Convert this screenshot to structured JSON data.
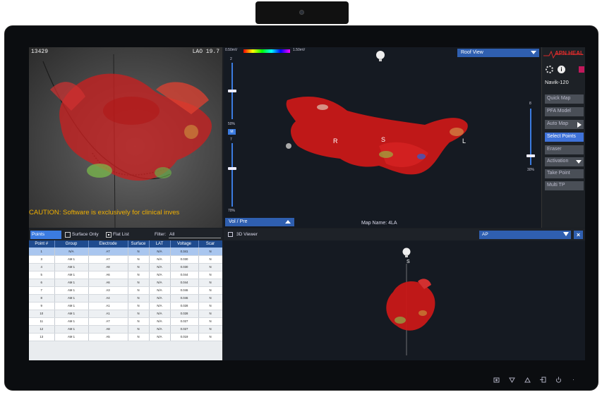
{
  "fluoro": {
    "id": "13429",
    "view": "LAO 19.7",
    "caution": "CAUTION: Software is exclusively for clinical inves"
  },
  "map": {
    "colorbar_min": "0.50mV",
    "colorbar_max": "1.50mV",
    "view_select": "Roof View",
    "map_name": "Map Name: 4LA",
    "vol_pre": "Vol / Pre",
    "orient_right": "R",
    "orient_super": "S",
    "orient_left": "L",
    "slider_labels": [
      "2",
      "50%",
      "M",
      "7",
      "70%"
    ],
    "right_slider_labels": [
      "8",
      "30%"
    ]
  },
  "side": {
    "brand": "APN HEAL",
    "device": "Navik-120",
    "buttons": [
      {
        "label": "Quick Map",
        "active": false
      },
      {
        "label": "PFA Model",
        "active": false
      },
      {
        "label": "Auto Map",
        "active": false
      },
      {
        "label": "Select Points",
        "active": true
      },
      {
        "label": "Eraser",
        "active": false
      },
      {
        "label": "Activation",
        "active": false
      },
      {
        "label": "Take Point",
        "active": false
      },
      {
        "label": "Multi TP",
        "active": false
      }
    ]
  },
  "points": {
    "tab": "Points",
    "surface_only": "Surface Only",
    "flat_list": "Flat List",
    "filter_label": "Filter:",
    "filter_value": "All",
    "columns": [
      "Point #",
      "Group",
      "Electrode",
      "Surface",
      "LAT",
      "Voltage",
      "Scar"
    ],
    "rows": [
      [
        "1",
        "N/A",
        "A7",
        "N",
        "N/A",
        "0.341",
        "N"
      ],
      [
        "3",
        "AM 1",
        "A7",
        "N",
        "N/A",
        "0.030",
        "N"
      ],
      [
        "4",
        "AM 1",
        "A8",
        "N",
        "N/A",
        "0.030",
        "N"
      ],
      [
        "5",
        "AM 1",
        "A6",
        "N",
        "N/A",
        "0.044",
        "N"
      ],
      [
        "6",
        "AM 1",
        "A6",
        "N",
        "N/A",
        "0.044",
        "N"
      ],
      [
        "7",
        "AM 1",
        "A3",
        "N",
        "N/A",
        "0.046",
        "N"
      ],
      [
        "8",
        "AM 1",
        "A4",
        "N",
        "N/A",
        "0.046",
        "N"
      ],
      [
        "9",
        "AM 1",
        "A1",
        "N",
        "N/A",
        "0.028",
        "N"
      ],
      [
        "10",
        "AM 1",
        "A1",
        "N",
        "N/A",
        "0.028",
        "N"
      ],
      [
        "11",
        "AM 1",
        "A7",
        "N",
        "N/A",
        "0.027",
        "N"
      ],
      [
        "12",
        "AM 1",
        "A8",
        "N",
        "N/A",
        "0.027",
        "N"
      ],
      [
        "13",
        "AM 1",
        "A5",
        "N",
        "N/A",
        "0.019",
        "N"
      ]
    ]
  },
  "viewer": {
    "title": "3D Viewer",
    "view_select": "AP",
    "orient_super": "S"
  },
  "bezel": {
    "icons": [
      "screenshot-icon",
      "down-icon",
      "up-icon",
      "input-icon",
      "power-icon"
    ]
  }
}
